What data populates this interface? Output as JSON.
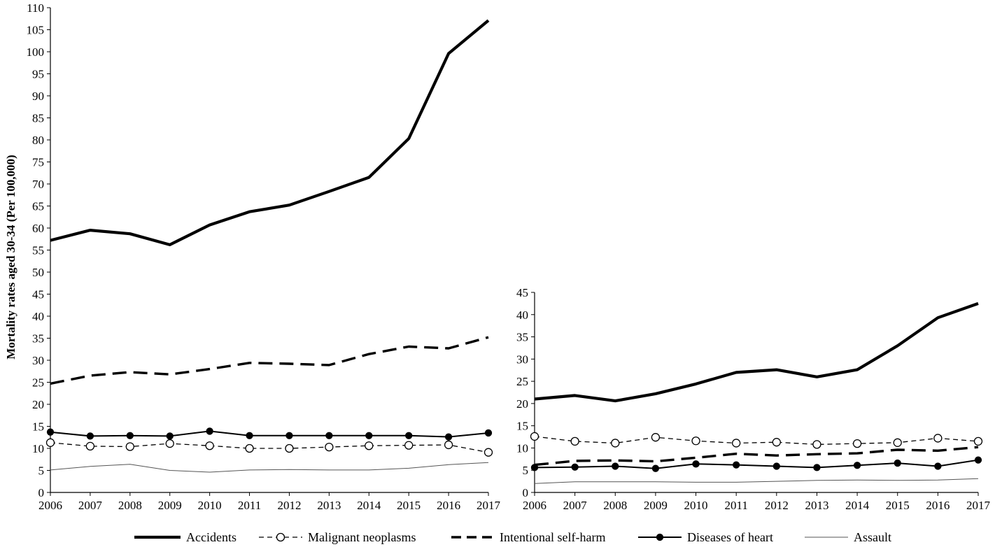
{
  "chart_data": [
    {
      "type": "line",
      "title": "",
      "xlabel": "",
      "ylabel": "Mortality rates aged 30-34 (Per 100,000)",
      "ylim": [
        0,
        110
      ],
      "ytick_step": 5,
      "grid": false,
      "categories": [
        "2006",
        "2007",
        "2008",
        "2009",
        "2010",
        "2011",
        "2012",
        "2013",
        "2014",
        "2015",
        "2016",
        "2017"
      ],
      "series": [
        {
          "name": "Accidents",
          "values": [
            57.2,
            59.5,
            58.7,
            56.2,
            60.7,
            63.7,
            65.2,
            68.3,
            71.5,
            80.3,
            99.6,
            107.1
          ]
        },
        {
          "name": "Malignant neoplasms",
          "values": [
            11.3,
            10.5,
            10.4,
            11.1,
            10.6,
            10.0,
            10.0,
            10.3,
            10.6,
            10.7,
            10.8,
            9.1
          ]
        },
        {
          "name": "Intentional self-harm",
          "values": [
            24.7,
            26.5,
            27.3,
            26.8,
            28.0,
            29.4,
            29.2,
            28.9,
            31.4,
            33.1,
            32.7,
            35.2
          ]
        },
        {
          "name": "Diseases of heart",
          "values": [
            13.7,
            12.8,
            12.9,
            12.8,
            13.9,
            12.9,
            12.9,
            12.9,
            12.9,
            12.9,
            12.6,
            13.5
          ]
        },
        {
          "name": "Assault",
          "values": [
            5.1,
            5.9,
            6.4,
            5.0,
            4.6,
            5.1,
            5.2,
            5.1,
            5.1,
            5.5,
            6.3,
            6.8
          ]
        }
      ]
    },
    {
      "type": "line",
      "title": "",
      "xlabel": "",
      "ylabel": "",
      "ylim": [
        0,
        45
      ],
      "ytick_step": 5,
      "grid": false,
      "categories": [
        "2006",
        "2007",
        "2008",
        "2009",
        "2010",
        "2011",
        "2012",
        "2013",
        "2014",
        "2015",
        "2016",
        "2017"
      ],
      "series": [
        {
          "name": "Accidents",
          "values": [
            21.0,
            21.8,
            20.6,
            22.2,
            24.4,
            27.0,
            27.6,
            26.0,
            27.6,
            33.0,
            39.3,
            42.5
          ]
        },
        {
          "name": "Malignant neoplasms",
          "values": [
            12.6,
            11.5,
            11.1,
            12.4,
            11.6,
            11.1,
            11.3,
            10.8,
            11.0,
            11.2,
            12.2,
            11.5
          ]
        },
        {
          "name": "Intentional self-harm",
          "values": [
            6.2,
            7.1,
            7.2,
            7.0,
            7.8,
            8.7,
            8.3,
            8.6,
            8.8,
            9.6,
            9.4,
            10.2
          ]
        },
        {
          "name": "Diseases of heart",
          "values": [
            5.6,
            5.7,
            5.9,
            5.4,
            6.4,
            6.2,
            5.9,
            5.6,
            6.1,
            6.6,
            5.9,
            7.3
          ]
        },
        {
          "name": "Assault",
          "values": [
            2.0,
            2.4,
            2.4,
            2.4,
            2.3,
            2.3,
            2.5,
            2.7,
            2.8,
            2.7,
            2.8,
            3.1
          ]
        }
      ]
    }
  ],
  "legend": {
    "position": "bottom",
    "items": [
      {
        "label": "Accidents",
        "style": "thick-solid"
      },
      {
        "label": "Malignant neoplasms",
        "style": "dashed-open-circle"
      },
      {
        "label": "Intentional self-harm",
        "style": "thick-dashed"
      },
      {
        "label": "Diseases of heart",
        "style": "solid-filled-circle"
      },
      {
        "label": "Assault",
        "style": "thin-solid"
      }
    ]
  },
  "colors": {
    "ink": "#000000",
    "thin_line": "#555555",
    "background": "#ffffff"
  }
}
